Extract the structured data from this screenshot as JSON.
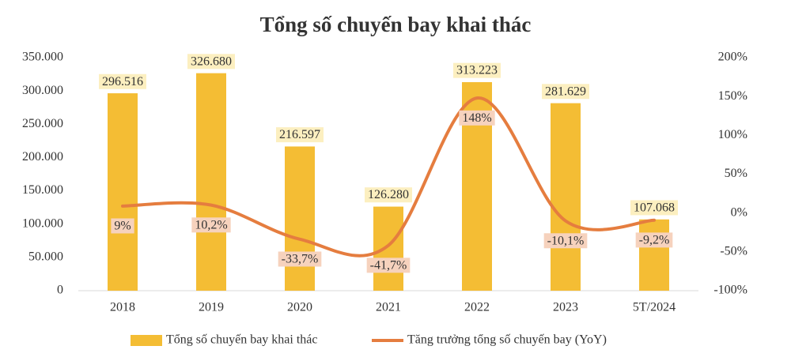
{
  "chart_data": {
    "type": "bar",
    "title": "Tổng số chuyến bay khai thác",
    "categories": [
      "2018",
      "2019",
      "2020",
      "2021",
      "2022",
      "2023",
      "5T/2024"
    ],
    "series": [
      {
        "name": "Tổng số chuyến bay khai thác",
        "color": "#f4bd34",
        "values": [
          296516,
          326680,
          216597,
          126280,
          313223,
          281629,
          107068
        ],
        "value_labels": [
          "296.516",
          "326.680",
          "216.597",
          "126.280",
          "313.223",
          "281.629",
          "107.068"
        ]
      },
      {
        "name": "Tăng trưởng tổng số chuyến bay (YoY)",
        "color": "#e57d3f",
        "type": "line",
        "axis": "y2",
        "values": [
          9,
          10.2,
          -33.7,
          -41.7,
          148,
          -10.1,
          -9.2
        ],
        "value_labels": [
          "9%",
          "10,2%",
          "-33,7%",
          "-41,7%",
          "148%",
          "-10,1%",
          "-9,2%"
        ]
      }
    ],
    "ylim": [
      0,
      350000
    ],
    "yticks": [
      0,
      {
        "value": 50000,
        "label": "50.000"
      },
      {
        "value": 100000,
        "label": "100.000"
      },
      {
        "value": 150000,
        "label": "150.000"
      },
      {
        "value": 200000,
        "label": "200.000"
      },
      {
        "value": 250000,
        "label": "250.000"
      },
      {
        "value": 300000,
        "label": "300.000"
      },
      {
        "value": 350000,
        "label": "350.000"
      }
    ],
    "y2lim": [
      -100,
      200
    ],
    "y2ticks": [
      {
        "value": -100,
        "label": "-100%"
      },
      {
        "value": -50,
        "label": "-50%"
      },
      {
        "value": 0,
        "label": "0%"
      },
      {
        "value": 50,
        "label": "50%"
      },
      {
        "value": 100,
        "label": "100%"
      },
      {
        "value": 150,
        "label": "150%"
      },
      {
        "value": 200,
        "label": "200%"
      }
    ]
  }
}
